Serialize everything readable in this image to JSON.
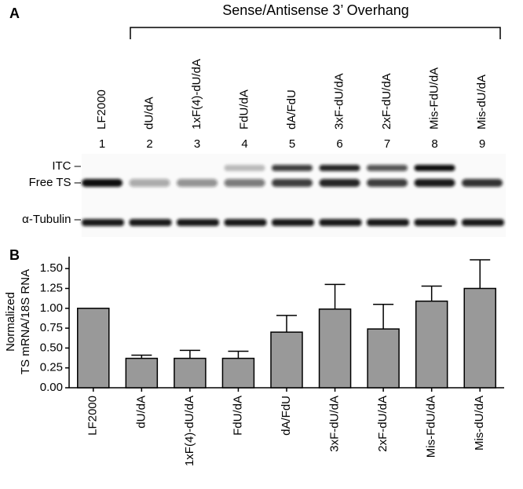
{
  "panel_a": {
    "label": "A",
    "bracket_title": "Sense/Antisense 3’ Overhang",
    "lanes": [
      "LF2000",
      "dU/dA",
      "1xF(4)-dU/dA",
      "FdU/dA",
      "dA/FdU",
      "3xF-dU/dA",
      "2xF-dU/dA",
      "Mis-FdU/dA",
      "Mis-dU/dA"
    ],
    "lane_numbers": [
      "1",
      "2",
      "3",
      "4",
      "5",
      "6",
      "7",
      "8",
      "9"
    ],
    "band_labels": [
      "ITC –",
      "Free TS –",
      "α-Tubulin –"
    ]
  },
  "chart_data": {
    "type": "bar",
    "panel_label": "B",
    "ylabel": [
      "Normalized",
      "TS mRNA/18S RNA"
    ],
    "categories": [
      "LF2000",
      "dU/dA",
      "1xF(4)-dU/dA",
      "FdU/dA",
      "dA/FdU",
      "3xF-dU/dA",
      "2xF-dU/dA",
      "Mis-FdU/dA",
      "Mis-dU/dA"
    ],
    "values": [
      1.0,
      0.37,
      0.37,
      0.37,
      0.7,
      0.99,
      0.74,
      1.09,
      1.25
    ],
    "errors": [
      null,
      0.04,
      0.1,
      0.09,
      0.21,
      0.31,
      0.31,
      0.19,
      0.36
    ],
    "color": "#999999",
    "ylim": [
      0,
      1.65
    ],
    "yticks": [
      {
        "value": 0,
        "label": "0.00"
      },
      {
        "value": 0.25,
        "label": "0.25"
      },
      {
        "value": 0.5,
        "label": "0.50"
      },
      {
        "value": 0.75,
        "label": "0.75"
      },
      {
        "value": 1,
        "label": "1.00"
      },
      {
        "value": 1.25,
        "label": "1.25"
      },
      {
        "value": 1.5,
        "label": "1.50"
      }
    ]
  }
}
